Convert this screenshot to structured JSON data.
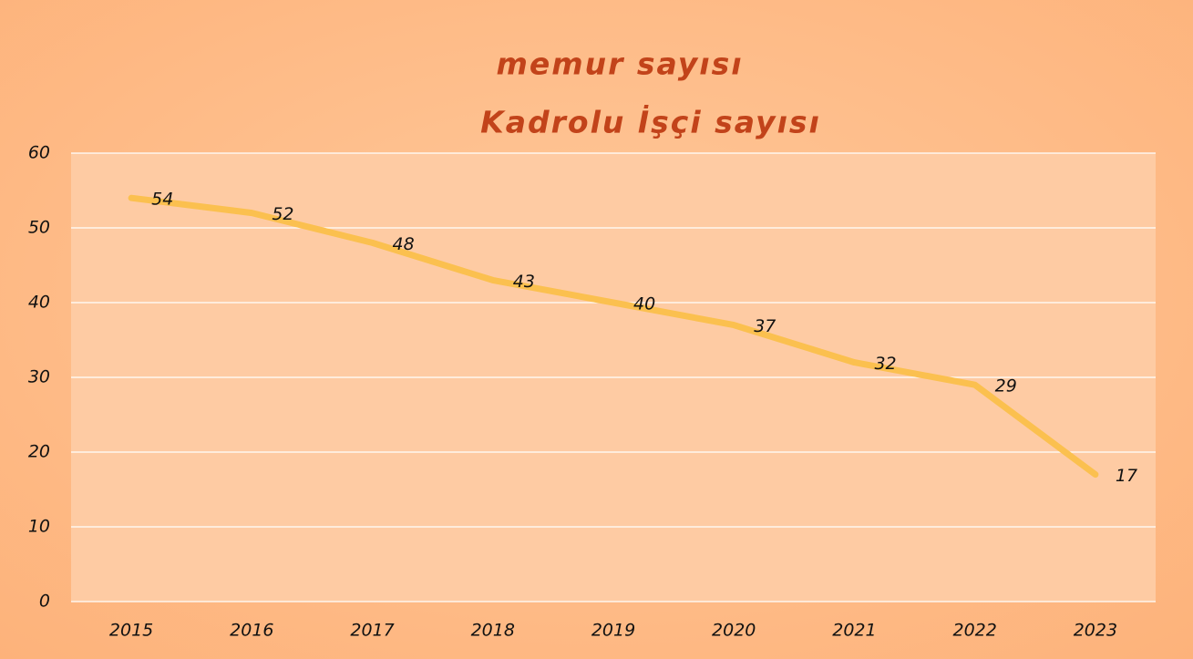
{
  "chart_data": {
    "type": "line",
    "subtitle": "memur sayısı",
    "title": "Kadrolu İşçi sayısı",
    "categories": [
      "2015",
      "2016",
      "2017",
      "2018",
      "2019",
      "2020",
      "2021",
      "2022",
      "2023"
    ],
    "series": [
      {
        "name": "Kadrolu İşçi sayısı",
        "color": "#fbc04f",
        "values": [
          54,
          52,
          48,
          43,
          40,
          37,
          32,
          29,
          17
        ]
      }
    ],
    "ylim": [
      0,
      60
    ],
    "yticks": [
      0,
      10,
      20,
      30,
      40,
      50,
      60
    ],
    "grid": true,
    "data_labels": true
  }
}
